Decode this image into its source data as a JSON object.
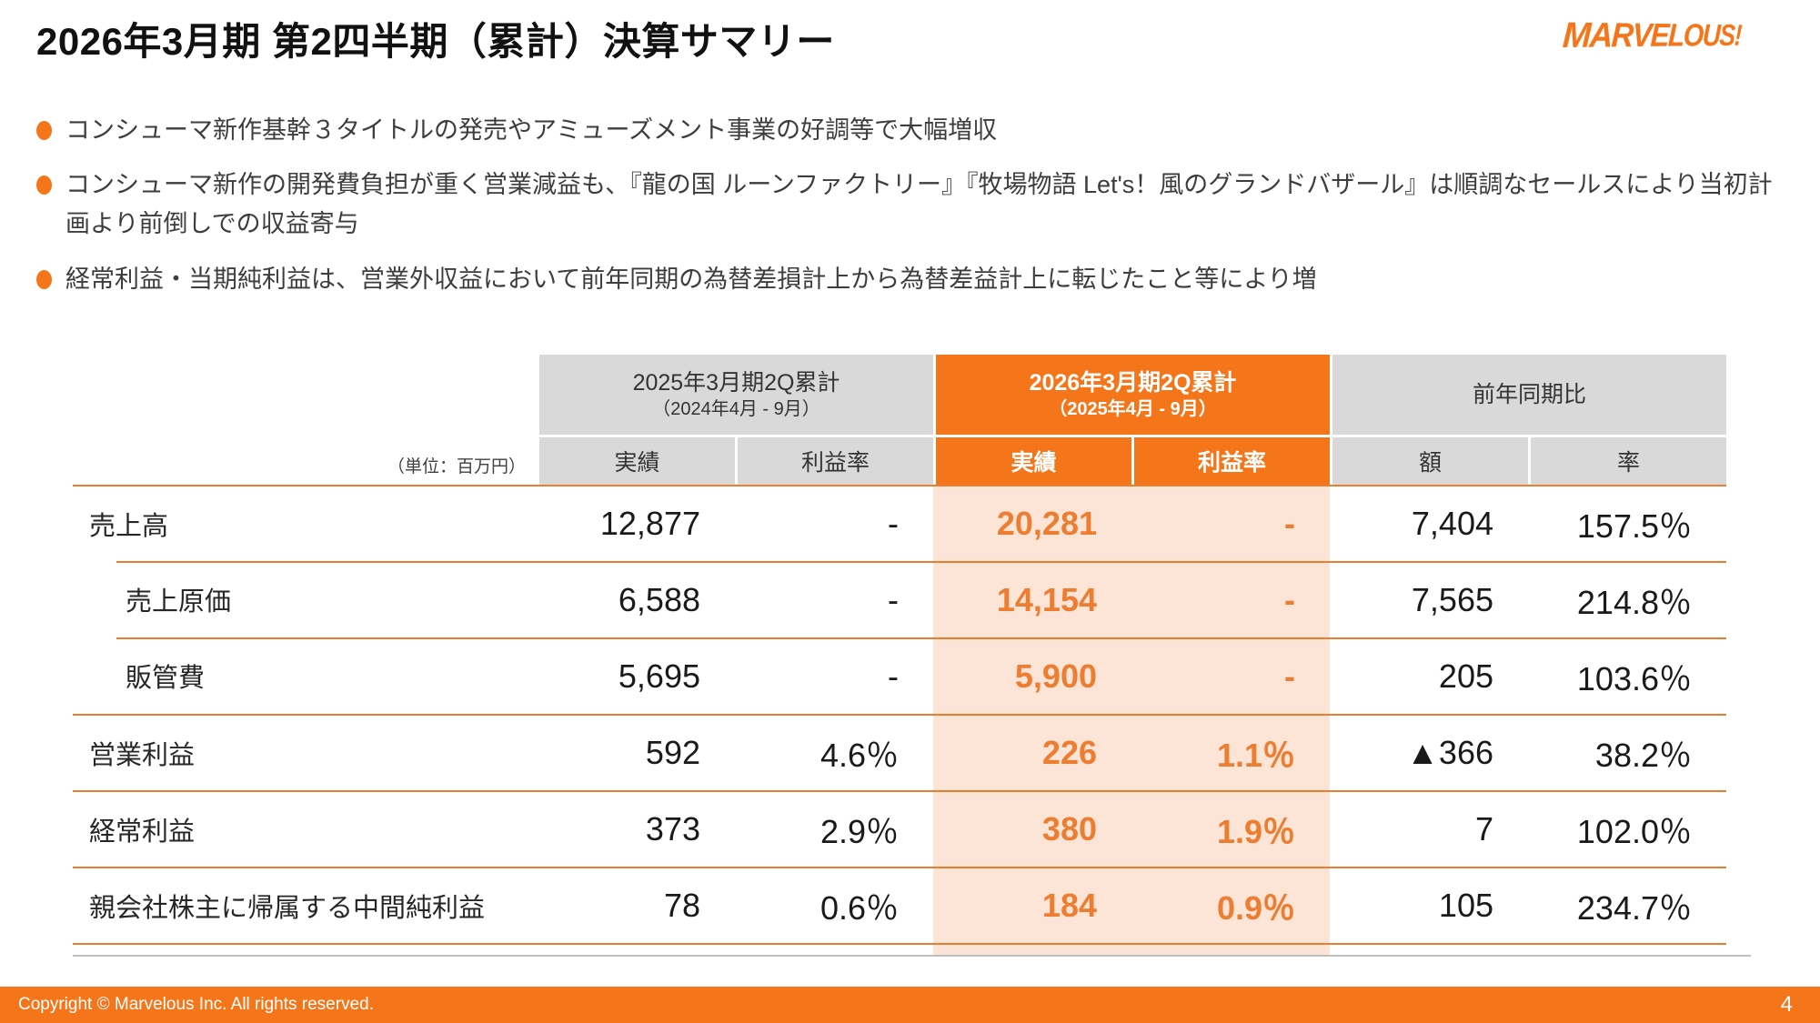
{
  "slide": {
    "title": "2026年3月期 第2四半期（累計）決算サマリー",
    "logo_text": "MARVELOUS!",
    "page_number": "4",
    "copyright": "Copyright © Marvelous Inc. All rights reserved."
  },
  "bullets": [
    "コンシューマ新作基幹３タイトルの発売やアミューズメント事業の好調等で大幅増収",
    "コンシューマ新作の開発費負担が重く営業減益も、『龍の国 ルーンファクトリー』『牧場物語 Let's！風のグランドバザール』は順調なセールスにより当初計画より前倒しでの収益寄与",
    "経常利益・当期純利益は、営業外収益において前年同期の為替差損計上から為替差益計上に転じたこと等により増"
  ],
  "table": {
    "unit_note": "（単位：百万円）",
    "groups": [
      {
        "title": "2025年3月期2Q累計",
        "subtitle": "（2024年4月 - 9月）",
        "col1": "実績",
        "col2": "利益率"
      },
      {
        "title": "2026年3月期2Q累計",
        "subtitle": "（2025年4月 - 9月）",
        "col1": "実績",
        "col2": "利益率"
      },
      {
        "title": "前年同期比",
        "col1": "額",
        "col2": "率"
      }
    ],
    "rows": [
      {
        "label": "売上高",
        "py_actual": "12,877",
        "py_margin": "-",
        "cy_actual": "20,281",
        "cy_margin": "-",
        "yoy_amount": "7,404",
        "yoy_rate": "157.5％"
      },
      {
        "label": "売上原価",
        "py_actual": "6,588",
        "py_margin": "-",
        "cy_actual": "14,154",
        "cy_margin": "-",
        "yoy_amount": "7,565",
        "yoy_rate": "214.8％"
      },
      {
        "label": "販管費",
        "py_actual": "5,695",
        "py_margin": "-",
        "cy_actual": "5,900",
        "cy_margin": "-",
        "yoy_amount": "205",
        "yoy_rate": "103.6％"
      },
      {
        "label": "営業利益",
        "py_actual": "592",
        "py_margin": "4.6％",
        "cy_actual": "226",
        "cy_margin": "1.1％",
        "yoy_amount": "▲366",
        "yoy_rate": "38.2％"
      },
      {
        "label": "経常利益",
        "py_actual": "373",
        "py_margin": "2.9％",
        "cy_actual": "380",
        "cy_margin": "1.9％",
        "yoy_amount": "7",
        "yoy_rate": "102.0％"
      },
      {
        "label": "親会社株主に帰属する中間純利益",
        "py_actual": "78",
        "py_margin": "0.6％",
        "cy_actual": "184",
        "cy_margin": "0.9％",
        "yoy_amount": "105",
        "yoy_rate": "234.7％"
      }
    ]
  },
  "colors": {
    "accent_orange": "#F5761A",
    "value_orange": "#ED7D31",
    "highlight_bg": "#FCE4D6",
    "header_gray": "#D9D9D9",
    "separator_orange": "#ED7D31",
    "bottom_line_gray": "#BFBFBF"
  }
}
